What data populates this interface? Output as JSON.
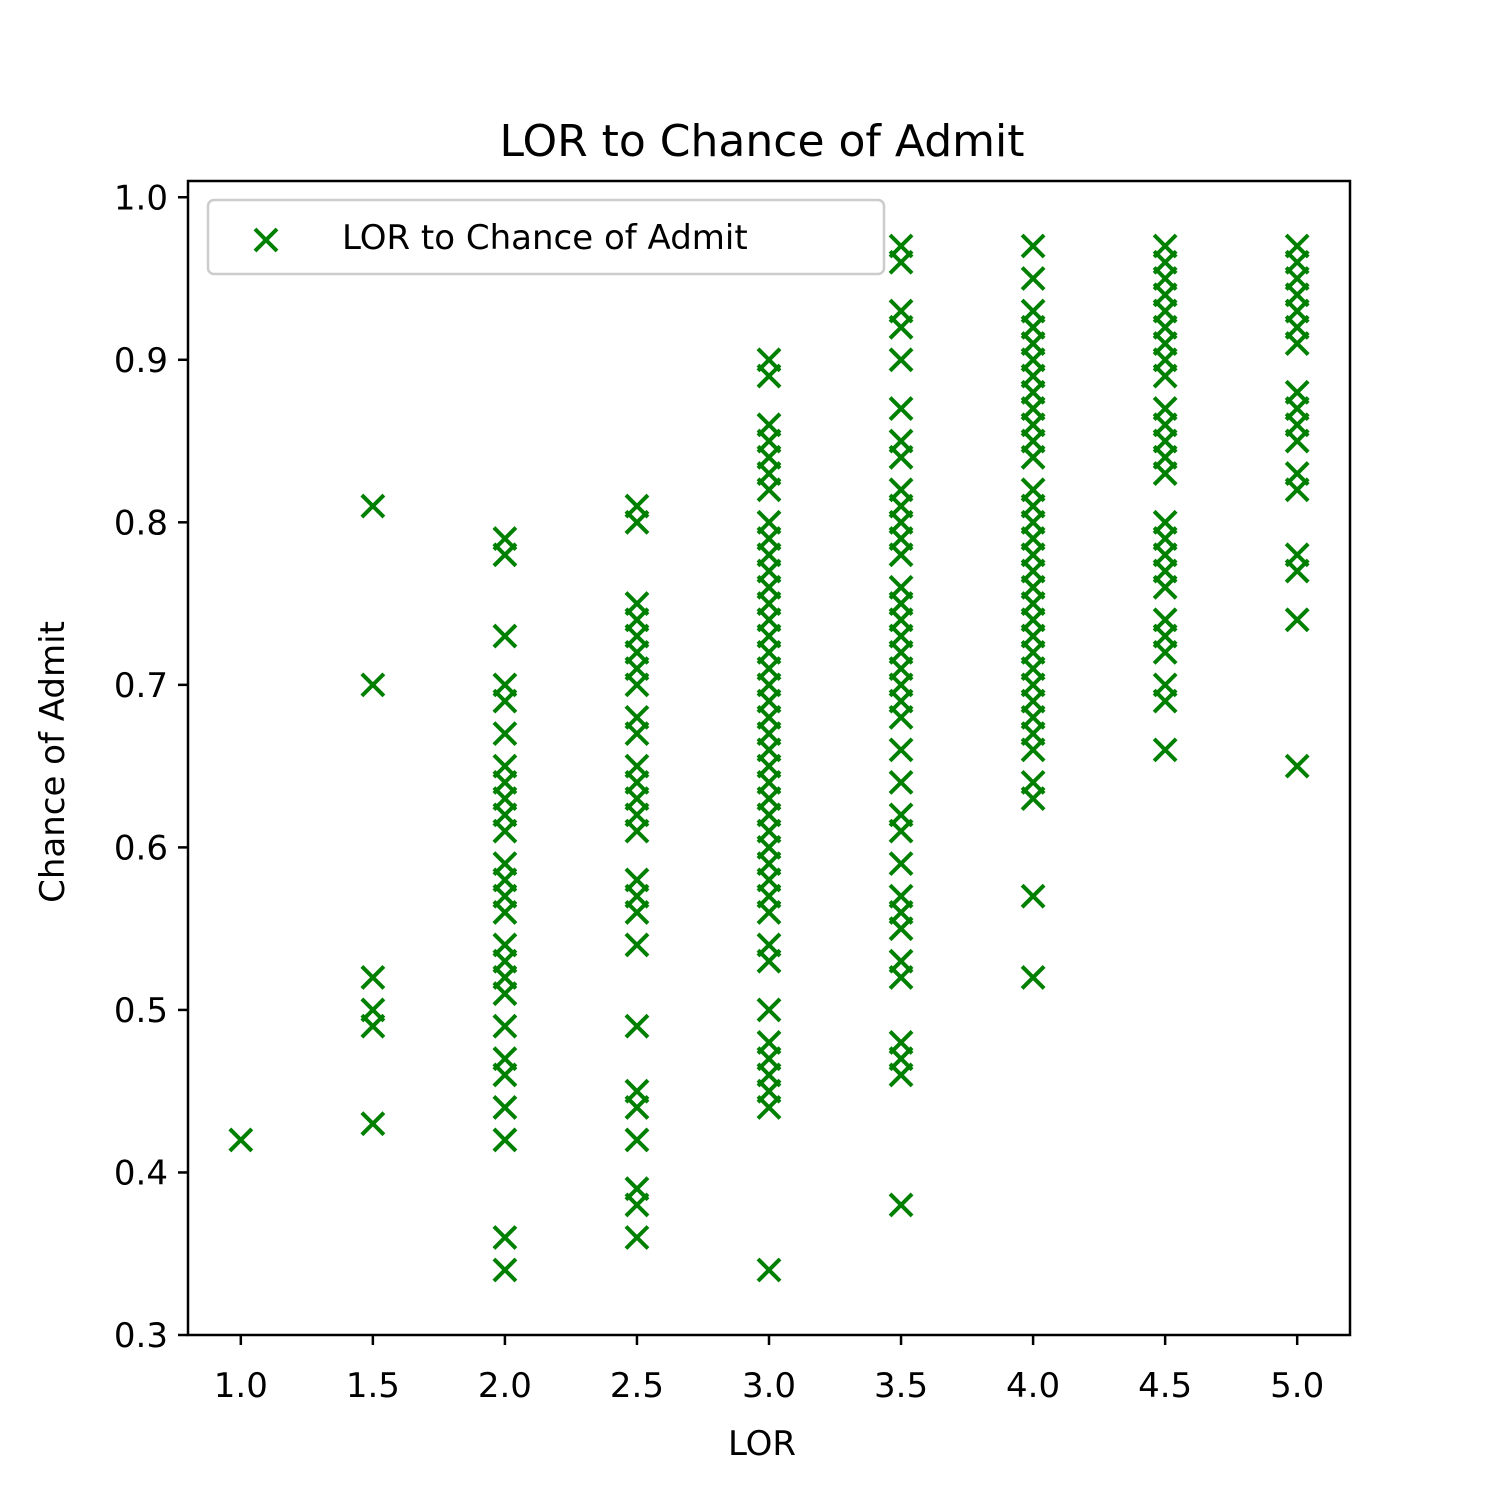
{
  "chart_data": {
    "type": "scatter",
    "title": "LOR  to Chance of Admit",
    "xlabel": "LOR",
    "ylabel": "Chance of Admit",
    "xlim": [
      0.8,
      5.2
    ],
    "ylim": [
      0.3,
      1.01
    ],
    "xticks": [
      "1.0",
      "1.5",
      "2.0",
      "2.5",
      "3.0",
      "3.5",
      "4.0",
      "4.5",
      "5.0"
    ],
    "yticks": [
      "0.3",
      "0.4",
      "0.5",
      "0.6",
      "0.7",
      "0.8",
      "0.9",
      "1.0"
    ],
    "grid": false,
    "legend_position": "top-left",
    "series": [
      {
        "name": "LOR  to Chance of Admit",
        "color": "#008000",
        "marker": "x",
        "points": [
          [
            1.0,
            0.42
          ],
          [
            1.5,
            0.81
          ],
          [
            1.5,
            0.7
          ],
          [
            1.5,
            0.52
          ],
          [
            1.5,
            0.5
          ],
          [
            1.5,
            0.49
          ],
          [
            1.5,
            0.43
          ],
          [
            2.0,
            0.79
          ],
          [
            2.0,
            0.78
          ],
          [
            2.0,
            0.73
          ],
          [
            2.0,
            0.7
          ],
          [
            2.0,
            0.69
          ],
          [
            2.0,
            0.67
          ],
          [
            2.0,
            0.65
          ],
          [
            2.0,
            0.64
          ],
          [
            2.0,
            0.63
          ],
          [
            2.0,
            0.62
          ],
          [
            2.0,
            0.61
          ],
          [
            2.0,
            0.59
          ],
          [
            2.0,
            0.58
          ],
          [
            2.0,
            0.57
          ],
          [
            2.0,
            0.56
          ],
          [
            2.0,
            0.54
          ],
          [
            2.0,
            0.53
          ],
          [
            2.0,
            0.52
          ],
          [
            2.0,
            0.51
          ],
          [
            2.0,
            0.49
          ],
          [
            2.0,
            0.47
          ],
          [
            2.0,
            0.46
          ],
          [
            2.0,
            0.44
          ],
          [
            2.0,
            0.42
          ],
          [
            2.0,
            0.36
          ],
          [
            2.0,
            0.34
          ],
          [
            2.5,
            0.81
          ],
          [
            2.5,
            0.8
          ],
          [
            2.5,
            0.75
          ],
          [
            2.5,
            0.74
          ],
          [
            2.5,
            0.73
          ],
          [
            2.5,
            0.72
          ],
          [
            2.5,
            0.71
          ],
          [
            2.5,
            0.7
          ],
          [
            2.5,
            0.68
          ],
          [
            2.5,
            0.67
          ],
          [
            2.5,
            0.65
          ],
          [
            2.5,
            0.64
          ],
          [
            2.5,
            0.63
          ],
          [
            2.5,
            0.62
          ],
          [
            2.5,
            0.61
          ],
          [
            2.5,
            0.58
          ],
          [
            2.5,
            0.57
          ],
          [
            2.5,
            0.56
          ],
          [
            2.5,
            0.54
          ],
          [
            2.5,
            0.49
          ],
          [
            2.5,
            0.45
          ],
          [
            2.5,
            0.44
          ],
          [
            2.5,
            0.42
          ],
          [
            2.5,
            0.39
          ],
          [
            2.5,
            0.38
          ],
          [
            2.5,
            0.36
          ],
          [
            3.0,
            0.9
          ],
          [
            3.0,
            0.89
          ],
          [
            3.0,
            0.86
          ],
          [
            3.0,
            0.85
          ],
          [
            3.0,
            0.84
          ],
          [
            3.0,
            0.83
          ],
          [
            3.0,
            0.82
          ],
          [
            3.0,
            0.8
          ],
          [
            3.0,
            0.79
          ],
          [
            3.0,
            0.78
          ],
          [
            3.0,
            0.77
          ],
          [
            3.0,
            0.76
          ],
          [
            3.0,
            0.75
          ],
          [
            3.0,
            0.74
          ],
          [
            3.0,
            0.73
          ],
          [
            3.0,
            0.72
          ],
          [
            3.0,
            0.71
          ],
          [
            3.0,
            0.7
          ],
          [
            3.0,
            0.69
          ],
          [
            3.0,
            0.68
          ],
          [
            3.0,
            0.67
          ],
          [
            3.0,
            0.66
          ],
          [
            3.0,
            0.65
          ],
          [
            3.0,
            0.64
          ],
          [
            3.0,
            0.63
          ],
          [
            3.0,
            0.62
          ],
          [
            3.0,
            0.61
          ],
          [
            3.0,
            0.6
          ],
          [
            3.0,
            0.59
          ],
          [
            3.0,
            0.58
          ],
          [
            3.0,
            0.57
          ],
          [
            3.0,
            0.56
          ],
          [
            3.0,
            0.54
          ],
          [
            3.0,
            0.53
          ],
          [
            3.0,
            0.5
          ],
          [
            3.0,
            0.48
          ],
          [
            3.0,
            0.47
          ],
          [
            3.0,
            0.46
          ],
          [
            3.0,
            0.45
          ],
          [
            3.0,
            0.44
          ],
          [
            3.0,
            0.34
          ],
          [
            3.5,
            0.97
          ],
          [
            3.5,
            0.96
          ],
          [
            3.5,
            0.93
          ],
          [
            3.5,
            0.92
          ],
          [
            3.5,
            0.9
          ],
          [
            3.5,
            0.87
          ],
          [
            3.5,
            0.85
          ],
          [
            3.5,
            0.84
          ],
          [
            3.5,
            0.82
          ],
          [
            3.5,
            0.81
          ],
          [
            3.5,
            0.8
          ],
          [
            3.5,
            0.79
          ],
          [
            3.5,
            0.78
          ],
          [
            3.5,
            0.76
          ],
          [
            3.5,
            0.75
          ],
          [
            3.5,
            0.74
          ],
          [
            3.5,
            0.73
          ],
          [
            3.5,
            0.72
          ],
          [
            3.5,
            0.71
          ],
          [
            3.5,
            0.7
          ],
          [
            3.5,
            0.69
          ],
          [
            3.5,
            0.68
          ],
          [
            3.5,
            0.66
          ],
          [
            3.5,
            0.64
          ],
          [
            3.5,
            0.62
          ],
          [
            3.5,
            0.61
          ],
          [
            3.5,
            0.59
          ],
          [
            3.5,
            0.57
          ],
          [
            3.5,
            0.56
          ],
          [
            3.5,
            0.55
          ],
          [
            3.5,
            0.53
          ],
          [
            3.5,
            0.52
          ],
          [
            3.5,
            0.48
          ],
          [
            3.5,
            0.47
          ],
          [
            3.5,
            0.46
          ],
          [
            3.5,
            0.38
          ],
          [
            4.0,
            0.97
          ],
          [
            4.0,
            0.95
          ],
          [
            4.0,
            0.93
          ],
          [
            4.0,
            0.92
          ],
          [
            4.0,
            0.91
          ],
          [
            4.0,
            0.9
          ],
          [
            4.0,
            0.89
          ],
          [
            4.0,
            0.88
          ],
          [
            4.0,
            0.87
          ],
          [
            4.0,
            0.86
          ],
          [
            4.0,
            0.85
          ],
          [
            4.0,
            0.84
          ],
          [
            4.0,
            0.82
          ],
          [
            4.0,
            0.81
          ],
          [
            4.0,
            0.8
          ],
          [
            4.0,
            0.79
          ],
          [
            4.0,
            0.78
          ],
          [
            4.0,
            0.77
          ],
          [
            4.0,
            0.76
          ],
          [
            4.0,
            0.75
          ],
          [
            4.0,
            0.74
          ],
          [
            4.0,
            0.73
          ],
          [
            4.0,
            0.72
          ],
          [
            4.0,
            0.71
          ],
          [
            4.0,
            0.7
          ],
          [
            4.0,
            0.69
          ],
          [
            4.0,
            0.68
          ],
          [
            4.0,
            0.67
          ],
          [
            4.0,
            0.66
          ],
          [
            4.0,
            0.64
          ],
          [
            4.0,
            0.63
          ],
          [
            4.0,
            0.57
          ],
          [
            4.0,
            0.52
          ],
          [
            4.5,
            0.97
          ],
          [
            4.5,
            0.96
          ],
          [
            4.5,
            0.95
          ],
          [
            4.5,
            0.94
          ],
          [
            4.5,
            0.93
          ],
          [
            4.5,
            0.92
          ],
          [
            4.5,
            0.91
          ],
          [
            4.5,
            0.9
          ],
          [
            4.5,
            0.89
          ],
          [
            4.5,
            0.87
          ],
          [
            4.5,
            0.86
          ],
          [
            4.5,
            0.85
          ],
          [
            4.5,
            0.84
          ],
          [
            4.5,
            0.83
          ],
          [
            4.5,
            0.8
          ],
          [
            4.5,
            0.79
          ],
          [
            4.5,
            0.78
          ],
          [
            4.5,
            0.77
          ],
          [
            4.5,
            0.76
          ],
          [
            4.5,
            0.74
          ],
          [
            4.5,
            0.73
          ],
          [
            4.5,
            0.72
          ],
          [
            4.5,
            0.7
          ],
          [
            4.5,
            0.69
          ],
          [
            4.5,
            0.66
          ],
          [
            5.0,
            0.97
          ],
          [
            5.0,
            0.96
          ],
          [
            5.0,
            0.95
          ],
          [
            5.0,
            0.94
          ],
          [
            5.0,
            0.93
          ],
          [
            5.0,
            0.92
          ],
          [
            5.0,
            0.91
          ],
          [
            5.0,
            0.88
          ],
          [
            5.0,
            0.87
          ],
          [
            5.0,
            0.86
          ],
          [
            5.0,
            0.85
          ],
          [
            5.0,
            0.83
          ],
          [
            5.0,
            0.82
          ],
          [
            5.0,
            0.78
          ],
          [
            5.0,
            0.77
          ],
          [
            5.0,
            0.74
          ],
          [
            5.0,
            0.65
          ]
        ]
      }
    ]
  }
}
